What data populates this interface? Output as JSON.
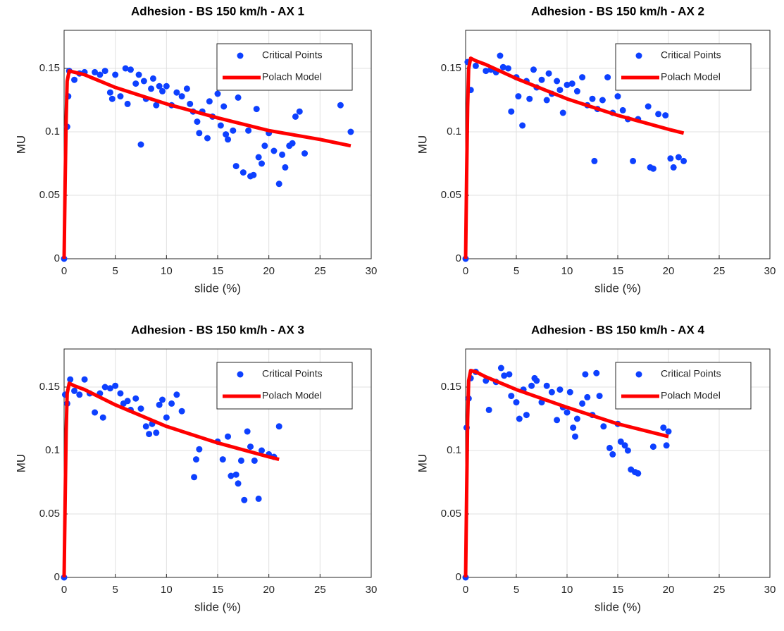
{
  "chart_data": [
    {
      "type": "scatter",
      "title": "Adhesion - BS 150 km/h - AX 1",
      "xlabel": "slide (%)",
      "ylabel": "MU",
      "xlim": [
        0,
        30
      ],
      "ylim": [
        0,
        0.18
      ],
      "xticks": [
        0,
        5,
        10,
        15,
        20,
        25,
        30
      ],
      "yticks": [
        0,
        0.05,
        0.1,
        0.15
      ],
      "grid": true,
      "legend": "upper right",
      "series": [
        {
          "name": "Critical Points",
          "color": "#0d40ff",
          "mark": "dot",
          "x": [
            0,
            0.3,
            0.4,
            0.5,
            1,
            1.5,
            2,
            3,
            3.5,
            4,
            4.5,
            4.7,
            5,
            5.5,
            6,
            6.2,
            6.5,
            7,
            7.3,
            7.5,
            7.8,
            8,
            8.5,
            8.7,
            9,
            9.3,
            9.6,
            10,
            10.5,
            11,
            11.5,
            12,
            12.3,
            12.6,
            13,
            13.2,
            13.5,
            14,
            14.2,
            14.5,
            15,
            15.3,
            15.6,
            15.8,
            16,
            16.5,
            16.8,
            17,
            17.5,
            18,
            18.2,
            18.5,
            18.8,
            19,
            19.3,
            19.6,
            20,
            20.5,
            21,
            21.3,
            21.6,
            22,
            22.3,
            22.6,
            23,
            23.5,
            27,
            28
          ],
          "values": [
            0,
            0.104,
            0.128,
            0.148,
            0.141,
            0.146,
            0.147,
            0.147,
            0.145,
            0.148,
            0.131,
            0.126,
            0.145,
            0.128,
            0.15,
            0.122,
            0.149,
            0.138,
            0.145,
            0.09,
            0.14,
            0.126,
            0.134,
            0.142,
            0.121,
            0.136,
            0.132,
            0.136,
            0.121,
            0.131,
            0.128,
            0.134,
            0.122,
            0.116,
            0.108,
            0.099,
            0.116,
            0.095,
            0.124,
            0.112,
            0.13,
            0.105,
            0.12,
            0.098,
            0.094,
            0.101,
            0.073,
            0.127,
            0.068,
            0.101,
            0.065,
            0.066,
            0.118,
            0.08,
            0.075,
            0.089,
            0.099,
            0.085,
            0.059,
            0.082,
            0.072,
            0.089,
            0.091,
            0.112,
            0.116,
            0.083,
            0.121,
            0.1
          ]
        },
        {
          "name": "Polach Model",
          "color": "#ff0000",
          "mark": "line",
          "x": [
            0,
            0.1,
            0.2,
            0.3,
            0.5,
            1,
            2,
            5,
            10,
            15,
            20,
            25,
            28
          ],
          "values": [
            0,
            0.06,
            0.11,
            0.14,
            0.148,
            0.147,
            0.145,
            0.135,
            0.122,
            0.111,
            0.101,
            0.094,
            0.089
          ]
        }
      ]
    },
    {
      "type": "scatter",
      "title": "Adhesion - BS 150 km/h - AX 2",
      "xlabel": "slide (%)",
      "ylabel": "MU",
      "xlim": [
        0,
        30
      ],
      "ylim": [
        0,
        0.18
      ],
      "xticks": [
        0,
        5,
        10,
        15,
        20,
        25,
        30
      ],
      "yticks": [
        0,
        0.05,
        0.1,
        0.15
      ],
      "grid": true,
      "legend": "upper right",
      "series": [
        {
          "name": "Critical Points",
          "color": "#0d40ff",
          "mark": "dot",
          "x": [
            0,
            0.2,
            0.5,
            1,
            2,
            2.5,
            3,
            3.4,
            3.7,
            4.2,
            4.5,
            5,
            5.2,
            5.6,
            6,
            6.3,
            6.7,
            7,
            7.5,
            8,
            8.2,
            8.5,
            9,
            9.3,
            9.6,
            10,
            10.5,
            11,
            11.5,
            12,
            12.5,
            12.7,
            13,
            13.5,
            14,
            14.5,
            15,
            15.5,
            16,
            16.5,
            17,
            18,
            18.2,
            18.5,
            19,
            19.7,
            20.2,
            20.5,
            21,
            21.5
          ],
          "values": [
            0,
            0.155,
            0.133,
            0.152,
            0.148,
            0.149,
            0.147,
            0.16,
            0.151,
            0.15,
            0.116,
            0.143,
            0.128,
            0.105,
            0.14,
            0.126,
            0.149,
            0.135,
            0.141,
            0.125,
            0.146,
            0.13,
            0.14,
            0.133,
            0.115,
            0.137,
            0.138,
            0.132,
            0.143,
            0.121,
            0.126,
            0.077,
            0.118,
            0.125,
            0.143,
            0.115,
            0.128,
            0.117,
            0.11,
            0.077,
            0.11,
            0.12,
            0.072,
            0.071,
            0.114,
            0.113,
            0.079,
            0.072,
            0.08,
            0.077
          ]
        },
        {
          "name": "Polach Model",
          "color": "#ff0000",
          "mark": "line",
          "x": [
            0,
            0.1,
            0.2,
            0.3,
            0.5,
            1,
            2,
            5,
            10,
            15,
            20,
            21.5
          ],
          "values": [
            0,
            0.065,
            0.12,
            0.15,
            0.158,
            0.156,
            0.153,
            0.142,
            0.126,
            0.113,
            0.102,
            0.099
          ]
        }
      ]
    },
    {
      "type": "scatter",
      "title": "Adhesion - BS 150 km/h - AX 3",
      "xlabel": "slide (%)",
      "ylabel": "MU",
      "xlim": [
        0,
        30
      ],
      "ylim": [
        0,
        0.18
      ],
      "xticks": [
        0,
        5,
        10,
        15,
        20,
        25,
        30
      ],
      "yticks": [
        0,
        0.05,
        0.1,
        0.15
      ],
      "grid": true,
      "legend": "upper right",
      "series": [
        {
          "name": "Critical Points",
          "color": "#0d40ff",
          "mark": "dot",
          "x": [
            0,
            0.1,
            0.3,
            0.6,
            1,
            1.5,
            2,
            2.5,
            3,
            3.5,
            3.8,
            4,
            4.5,
            5,
            5.5,
            5.8,
            6.2,
            6.5,
            7,
            7.5,
            8,
            8.3,
            8.6,
            9,
            9.3,
            9.6,
            10,
            10.5,
            11,
            11.5,
            12.7,
            12.9,
            13.2,
            15,
            15.5,
            16,
            16.3,
            16.8,
            17,
            17.3,
            17.6,
            17.9,
            18.2,
            18.6,
            19,
            19.3,
            20,
            20.5,
            21
          ],
          "values": [
            0,
            0.144,
            0.137,
            0.156,
            0.147,
            0.144,
            0.156,
            0.145,
            0.13,
            0.145,
            0.126,
            0.15,
            0.149,
            0.151,
            0.145,
            0.137,
            0.139,
            0.132,
            0.141,
            0.133,
            0.119,
            0.113,
            0.121,
            0.114,
            0.136,
            0.14,
            0.126,
            0.137,
            0.144,
            0.131,
            0.079,
            0.093,
            0.101,
            0.107,
            0.093,
            0.111,
            0.08,
            0.081,
            0.074,
            0.092,
            0.061,
            0.115,
            0.103,
            0.092,
            0.062,
            0.1,
            0.097,
            0.095,
            0.119
          ]
        },
        {
          "name": "Polach Model",
          "color": "#ff0000",
          "mark": "line",
          "x": [
            0,
            0.1,
            0.2,
            0.3,
            0.5,
            1,
            2,
            5,
            10,
            15,
            20,
            21
          ],
          "values": [
            0,
            0.06,
            0.115,
            0.145,
            0.153,
            0.151,
            0.148,
            0.136,
            0.119,
            0.106,
            0.095,
            0.093
          ]
        }
      ]
    },
    {
      "type": "scatter",
      "title": "Adhesion - BS 150 km/h - AX 4",
      "xlabel": "slide (%)",
      "ylabel": "MU",
      "xlim": [
        0,
        30
      ],
      "ylim": [
        0,
        0.18
      ],
      "xticks": [
        0,
        5,
        10,
        15,
        20,
        25,
        30
      ],
      "yticks": [
        0,
        0.05,
        0.1,
        0.15
      ],
      "grid": true,
      "legend": "upper right",
      "series": [
        {
          "name": "Critical Points",
          "color": "#0d40ff",
          "mark": "dot",
          "x": [
            0,
            0.1,
            0.3,
            0.5,
            1,
            2,
            2.3,
            3,
            3.5,
            3.8,
            4.3,
            4.5,
            5,
            5.3,
            5.7,
            6,
            6.5,
            6.8,
            7,
            7.5,
            8,
            8.5,
            9,
            9.3,
            9.6,
            10,
            10.3,
            10.6,
            10.8,
            11,
            11.5,
            11.8,
            12,
            12.5,
            12.9,
            13.2,
            13.6,
            14.2,
            14.5,
            15,
            15.3,
            15.7,
            16,
            16.3,
            16.7,
            17,
            18.5,
            19.5,
            19.8,
            20
          ],
          "values": [
            0,
            0.118,
            0.141,
            0.157,
            0.162,
            0.155,
            0.132,
            0.154,
            0.165,
            0.159,
            0.16,
            0.143,
            0.138,
            0.125,
            0.148,
            0.128,
            0.151,
            0.157,
            0.155,
            0.138,
            0.151,
            0.146,
            0.124,
            0.148,
            0.134,
            0.13,
            0.146,
            0.118,
            0.111,
            0.125,
            0.137,
            0.16,
            0.142,
            0.128,
            0.161,
            0.143,
            0.119,
            0.102,
            0.097,
            0.121,
            0.107,
            0.104,
            0.1,
            0.085,
            0.083,
            0.082,
            0.103,
            0.118,
            0.104,
            0.115
          ]
        },
        {
          "name": "Polach Model",
          "color": "#ff0000",
          "mark": "line",
          "x": [
            0,
            0.1,
            0.2,
            0.3,
            0.5,
            1,
            2,
            5,
            10,
            15,
            20
          ],
          "values": [
            0,
            0.065,
            0.125,
            0.155,
            0.163,
            0.162,
            0.158,
            0.148,
            0.134,
            0.121,
            0.111
          ]
        }
      ]
    }
  ]
}
